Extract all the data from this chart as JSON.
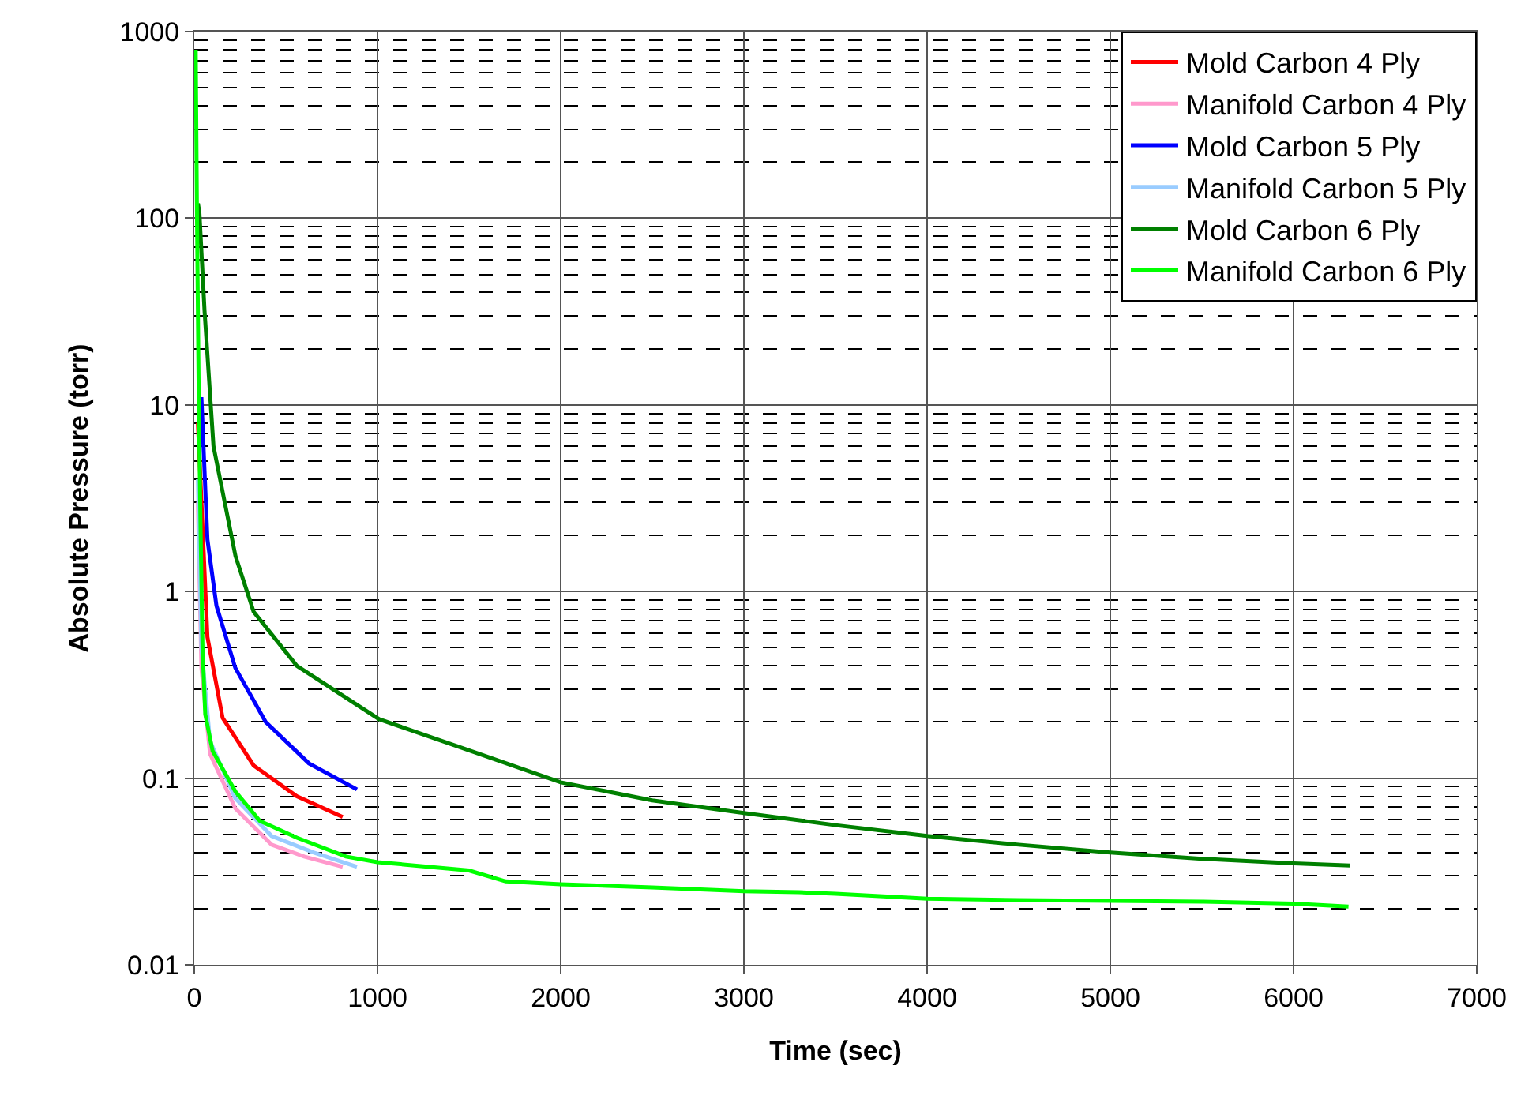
{
  "chart_data": {
    "type": "line",
    "xlabel": "Time (sec)",
    "ylabel": "Absolute Pressure (torr)",
    "log": "y",
    "grid": true,
    "legend": "top right",
    "marker": "none",
    "line_style": "solid",
    "xlim": [
      0,
      7000
    ],
    "xticks": [
      0,
      1000,
      2000,
      3000,
      4000,
      5000,
      6000,
      7000
    ],
    "ylim": [
      0.01,
      1000
    ],
    "yticks": [
      0.01,
      0.1,
      1,
      10,
      100,
      1000
    ],
    "series": [
      {
        "name": "Mold Carbon 4 Ply",
        "color": "#ff0000",
        "x": [
          20,
          72,
          155,
          324,
          560,
          810
        ],
        "values": [
          8,
          0.57,
          0.21,
          0.117,
          0.08,
          0.062
        ]
      },
      {
        "name": "Manifold Carbon 4 Ply",
        "color": "#ff99cc",
        "x": [
          20,
          39,
          86,
          224,
          422,
          600,
          810
        ],
        "values": [
          3,
          0.39,
          0.135,
          0.069,
          0.044,
          0.038,
          0.0335
        ]
      },
      {
        "name": "Mold Carbon 5 Ply",
        "color": "#0000ff",
        "x": [
          39,
          72,
          121,
          224,
          390,
          626,
          888
        ],
        "values": [
          11,
          1.9,
          0.84,
          0.39,
          0.2,
          0.12,
          0.087
        ]
      },
      {
        "name": "Manifold Carbon 5 Ply",
        "color": "#99ccff",
        "x": [
          20,
          39,
          86,
          224,
          422,
          650,
          888
        ],
        "values": [
          4,
          0.5,
          0.158,
          0.078,
          0.049,
          0.04,
          0.0335
        ]
      },
      {
        "name": "Mold Carbon 6 Ply",
        "color": "#008000",
        "x": [
          20,
          28,
          56,
          105,
          225,
          324,
          560,
          1009,
          1500,
          2000,
          2500,
          3000,
          3500,
          4000,
          4500,
          5000,
          5500,
          6000,
          6310
        ],
        "values": [
          120,
          107,
          32,
          6,
          1.55,
          0.78,
          0.4,
          0.207,
          0.141,
          0.095,
          0.076,
          0.065,
          0.056,
          0.049,
          0.044,
          0.04,
          0.037,
          0.035,
          0.034
        ]
      },
      {
        "name": "Manifold Carbon 6 Ply",
        "color": "#00ff00",
        "x": [
          8,
          15,
          25,
          35,
          45,
          60,
          100,
          224,
          358,
          560,
          828,
          1000,
          1500,
          1700,
          2000,
          2500,
          3000,
          3300,
          3500,
          4000,
          4500,
          5000,
          5500,
          6000,
          6300
        ],
        "values": [
          800,
          100,
          10,
          2,
          0.5,
          0.22,
          0.14,
          0.085,
          0.059,
          0.048,
          0.038,
          0.0355,
          0.032,
          0.028,
          0.027,
          0.026,
          0.0248,
          0.0245,
          0.024,
          0.0226,
          0.0222,
          0.022,
          0.0218,
          0.0213,
          0.0205
        ]
      }
    ]
  }
}
